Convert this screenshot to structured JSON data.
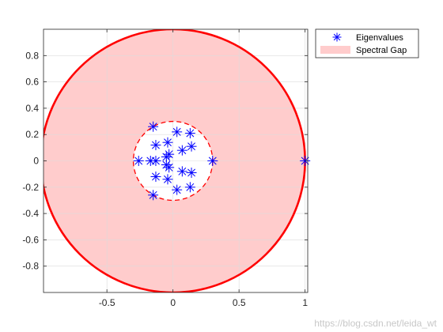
{
  "chart_data": {
    "type": "scatter",
    "title": "",
    "xlabel": "",
    "ylabel": "",
    "xlim": [
      -0.98,
      1.02
    ],
    "ylim": [
      -1.0,
      1.0
    ],
    "xticks": [
      -0.5,
      0,
      0.5,
      1
    ],
    "xtick_labels": [
      "-0.5",
      "0",
      "0.5",
      "1"
    ],
    "yticks": [
      -0.8,
      -0.6,
      -0.4,
      -0.2,
      0,
      0.2,
      0.4,
      0.6,
      0.8
    ],
    "ytick_labels": [
      "-0.8",
      "-0.6",
      "-0.4",
      "-0.2",
      "0",
      "0.2",
      "0.4",
      "0.6",
      "0.8"
    ],
    "grid": true,
    "legend_position": "outside-top-right",
    "series": [
      {
        "name": "Eigenvalues",
        "marker": "asterisk",
        "color": "#0000ff",
        "points": [
          {
            "x": 1.0,
            "y": 0.0
          },
          {
            "x": 0.3,
            "y": 0.0
          },
          {
            "x": -0.15,
            "y": 0.26
          },
          {
            "x": -0.15,
            "y": -0.26
          },
          {
            "x": 0.03,
            "y": 0.22
          },
          {
            "x": 0.13,
            "y": 0.21
          },
          {
            "x": 0.03,
            "y": -0.22
          },
          {
            "x": 0.13,
            "y": -0.2
          },
          {
            "x": -0.13,
            "y": 0.12
          },
          {
            "x": -0.04,
            "y": 0.14
          },
          {
            "x": -0.13,
            "y": -0.12
          },
          {
            "x": -0.04,
            "y": -0.14
          },
          {
            "x": 0.07,
            "y": 0.08
          },
          {
            "x": 0.14,
            "y": 0.11
          },
          {
            "x": 0.07,
            "y": -0.08
          },
          {
            "x": 0.14,
            "y": -0.09
          },
          {
            "x": -0.26,
            "y": 0.0
          },
          {
            "x": -0.17,
            "y": 0.0
          },
          {
            "x": -0.13,
            "y": 0.0
          },
          {
            "x": -0.05,
            "y": 0.03
          },
          {
            "x": -0.05,
            "y": -0.03
          },
          {
            "x": -0.03,
            "y": 0.05
          },
          {
            "x": -0.03,
            "y": -0.05
          }
        ]
      },
      {
        "name": "Spectral Gap",
        "type": "area",
        "fill_color": "#ffcccc",
        "outer_radius": 1.0,
        "outer_edge_color": "#ff0000",
        "inner_radius": 0.3,
        "inner_edge_style": "dashed"
      }
    ]
  },
  "watermark": "https://blog.csdn.net/leida_wt"
}
